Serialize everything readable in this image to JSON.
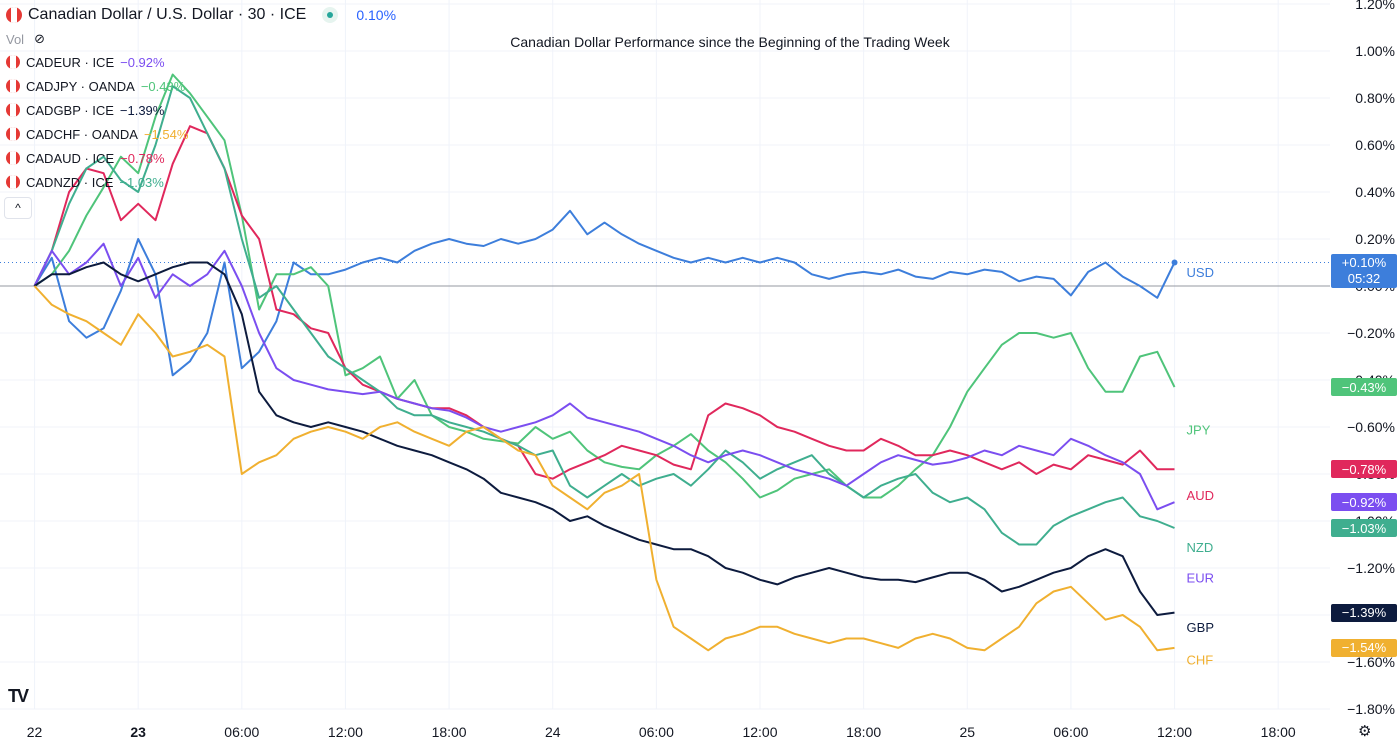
{
  "header": {
    "title": "Canadian Dollar / U.S. Dollar · 30 · ICE",
    "change": "0.10%",
    "change_color": "#2962ff"
  },
  "vol_label": "Vol",
  "symbols": [
    {
      "name": "CADEUR · ICE",
      "change": "−0.92%",
      "color": "#7b4ef0"
    },
    {
      "name": "CADJPY · OANDA",
      "change": "−0.43%",
      "color": "#4fc47a"
    },
    {
      "name": "CADGBP · ICE",
      "change": "−1.39%",
      "color": "#0d1b3e"
    },
    {
      "name": "CADCHF · OANDA",
      "change": "−1.54%",
      "color": "#f0b030"
    },
    {
      "name": "CADAUD · ICE",
      "change": "−0.78%",
      "color": "#e0285c"
    },
    {
      "name": "CADNZD · ICE",
      "change": "−1.03%",
      "color": "#3fae8f"
    }
  ],
  "collapse_label": "^",
  "logo_text": "TV",
  "settings_icon": "gear-icon",
  "price_badge_time": "05:32",
  "chart_data": {
    "type": "line",
    "title": "Canadian Dollar Performance since the Beginning of the Trading Week",
    "ylabel": "%",
    "ylim": [
      -1.8,
      1.2
    ],
    "x_tick_labels": [
      "22",
      "23",
      "06:00",
      "12:00",
      "18:00",
      "24",
      "06:00",
      "12:00",
      "18:00",
      "25",
      "06:00",
      "12:00",
      "18:00"
    ],
    "x_tick_values": [
      0,
      24,
      48,
      72,
      96,
      120,
      144,
      168,
      192,
      216,
      240,
      264,
      288
    ],
    "x_tick_bold": [
      false,
      true,
      false,
      false,
      false,
      false,
      false,
      false,
      false,
      false,
      false,
      false,
      false
    ],
    "y_ticks": [
      "1.20%",
      "1.00%",
      "0.80%",
      "0.60%",
      "0.40%",
      "0.20%",
      "0.00%",
      "−0.20%",
      "−0.40%",
      "−0.60%",
      "−0.80%",
      "−1.00%",
      "−1.20%",
      "−1.40%",
      "−1.60%",
      "−1.80%"
    ],
    "y_tick_values": [
      1.2,
      1.0,
      0.8,
      0.6,
      0.4,
      0.2,
      0.0,
      -0.2,
      -0.4,
      -0.6,
      -0.8,
      -1.0,
      -1.2,
      -1.4,
      -1.6,
      -1.8
    ],
    "grid": true,
    "x_unit_note": "half-hours since start",
    "series": [
      {
        "name": "USD",
        "color": "#3d7edb",
        "last": "+0.10%",
        "label_value": 0.06,
        "x": [
          0,
          4,
          8,
          12,
          16,
          20,
          24,
          28,
          32,
          36,
          40,
          44,
          48,
          52,
          56,
          60,
          64,
          68,
          72,
          76,
          80,
          84,
          88,
          92,
          96,
          100,
          104,
          108,
          112,
          116,
          120,
          124,
          128,
          132,
          136,
          140,
          144,
          148,
          152,
          156,
          160,
          164,
          168,
          172,
          176,
          180,
          184,
          188,
          192,
          196,
          200,
          204,
          208,
          212,
          216,
          220,
          224,
          228,
          232,
          236,
          240,
          244,
          248,
          252,
          256,
          260,
          264
        ],
        "y": [
          0.0,
          0.12,
          -0.15,
          -0.22,
          -0.18,
          -0.02,
          0.2,
          0.05,
          -0.38,
          -0.32,
          -0.2,
          0.1,
          -0.35,
          -0.28,
          -0.15,
          0.1,
          0.05,
          0.05,
          0.07,
          0.1,
          0.12,
          0.1,
          0.15,
          0.18,
          0.2,
          0.18,
          0.17,
          0.2,
          0.18,
          0.2,
          0.24,
          0.32,
          0.22,
          0.27,
          0.22,
          0.18,
          0.15,
          0.12,
          0.1,
          0.12,
          0.1,
          0.12,
          0.1,
          0.12,
          0.1,
          0.05,
          0.03,
          0.05,
          0.06,
          0.05,
          0.07,
          0.04,
          0.03,
          0.06,
          0.05,
          0.07,
          0.06,
          0.02,
          0.04,
          0.03,
          -0.04,
          0.06,
          0.1,
          0.04,
          0.0,
          -0.05,
          0.1
        ]
      },
      {
        "name": "JPY",
        "color": "#4fc47a",
        "last": "−0.43%",
        "label_value": -0.61,
        "x": [
          0,
          4,
          8,
          12,
          16,
          20,
          24,
          28,
          32,
          36,
          40,
          44,
          48,
          52,
          56,
          60,
          64,
          68,
          72,
          76,
          80,
          84,
          88,
          92,
          96,
          100,
          104,
          108,
          112,
          116,
          120,
          124,
          128,
          132,
          136,
          140,
          144,
          148,
          152,
          156,
          160,
          164,
          168,
          172,
          176,
          180,
          184,
          188,
          192,
          196,
          200,
          204,
          208,
          212,
          216,
          220,
          224,
          228,
          232,
          236,
          240,
          244,
          248,
          252,
          256,
          260,
          264
        ],
        "y": [
          0.0,
          0.05,
          0.15,
          0.3,
          0.42,
          0.55,
          0.48,
          0.72,
          0.9,
          0.82,
          0.72,
          0.62,
          0.3,
          -0.1,
          0.05,
          0.05,
          0.08,
          0.0,
          -0.38,
          -0.35,
          -0.3,
          -0.48,
          -0.4,
          -0.55,
          -0.6,
          -0.62,
          -0.65,
          -0.66,
          -0.67,
          -0.6,
          -0.65,
          -0.62,
          -0.7,
          -0.75,
          -0.77,
          -0.78,
          -0.72,
          -0.68,
          -0.63,
          -0.7,
          -0.75,
          -0.82,
          -0.9,
          -0.87,
          -0.82,
          -0.8,
          -0.78,
          -0.85,
          -0.9,
          -0.9,
          -0.85,
          -0.78,
          -0.72,
          -0.6,
          -0.45,
          -0.35,
          -0.25,
          -0.2,
          -0.2,
          -0.22,
          -0.2,
          -0.35,
          -0.45,
          -0.45,
          -0.3,
          -0.28,
          -0.43
        ]
      },
      {
        "name": "AUD",
        "color": "#e0285c",
        "last": "−0.78%",
        "label_value": -0.89,
        "x": [
          0,
          4,
          8,
          12,
          16,
          20,
          24,
          28,
          32,
          36,
          40,
          44,
          48,
          52,
          56,
          60,
          64,
          68,
          72,
          76,
          80,
          84,
          88,
          92,
          96,
          100,
          104,
          108,
          112,
          116,
          120,
          124,
          128,
          132,
          136,
          140,
          144,
          148,
          152,
          156,
          160,
          164,
          168,
          172,
          176,
          180,
          184,
          188,
          192,
          196,
          200,
          204,
          208,
          212,
          216,
          220,
          224,
          228,
          232,
          236,
          240,
          244,
          248,
          252,
          256,
          260,
          264
        ],
        "y": [
          0.0,
          0.15,
          0.4,
          0.5,
          0.48,
          0.28,
          0.35,
          0.28,
          0.52,
          0.68,
          0.65,
          0.5,
          0.3,
          0.2,
          -0.1,
          -0.12,
          -0.18,
          -0.2,
          -0.35,
          -0.42,
          -0.45,
          -0.48,
          -0.5,
          -0.52,
          -0.52,
          -0.55,
          -0.6,
          -0.65,
          -0.68,
          -0.8,
          -0.82,
          -0.78,
          -0.75,
          -0.72,
          -0.68,
          -0.7,
          -0.72,
          -0.76,
          -0.78,
          -0.55,
          -0.5,
          -0.52,
          -0.55,
          -0.6,
          -0.62,
          -0.65,
          -0.68,
          -0.7,
          -0.7,
          -0.65,
          -0.68,
          -0.72,
          -0.72,
          -0.7,
          -0.72,
          -0.75,
          -0.78,
          -0.75,
          -0.8,
          -0.76,
          -0.78,
          -0.72,
          -0.74,
          -0.76,
          -0.7,
          -0.78,
          -0.78
        ]
      },
      {
        "name": "NZD",
        "color": "#3fae8f",
        "last": "−1.03%",
        "label_value": -1.11,
        "x": [
          0,
          4,
          8,
          12,
          16,
          20,
          24,
          28,
          32,
          36,
          40,
          44,
          48,
          52,
          56,
          60,
          64,
          68,
          72,
          76,
          80,
          84,
          88,
          92,
          96,
          100,
          104,
          108,
          112,
          116,
          120,
          124,
          128,
          132,
          136,
          140,
          144,
          148,
          152,
          156,
          160,
          164,
          168,
          172,
          176,
          180,
          184,
          188,
          192,
          196,
          200,
          204,
          208,
          212,
          216,
          220,
          224,
          228,
          232,
          236,
          240,
          244,
          248,
          252,
          256,
          260,
          264
        ],
        "y": [
          0.0,
          0.15,
          0.35,
          0.5,
          0.55,
          0.45,
          0.4,
          0.6,
          0.85,
          0.8,
          0.65,
          0.5,
          0.2,
          -0.05,
          0.0,
          -0.1,
          -0.2,
          -0.3,
          -0.35,
          -0.4,
          -0.45,
          -0.52,
          -0.55,
          -0.55,
          -0.58,
          -0.6,
          -0.62,
          -0.65,
          -0.68,
          -0.72,
          -0.7,
          -0.85,
          -0.9,
          -0.85,
          -0.8,
          -0.85,
          -0.82,
          -0.8,
          -0.85,
          -0.78,
          -0.7,
          -0.75,
          -0.82,
          -0.78,
          -0.75,
          -0.72,
          -0.8,
          -0.85,
          -0.9,
          -0.85,
          -0.82,
          -0.8,
          -0.88,
          -0.92,
          -0.9,
          -0.95,
          -1.05,
          -1.1,
          -1.1,
          -1.02,
          -0.98,
          -0.95,
          -0.92,
          -0.9,
          -0.98,
          -1.0,
          -1.03
        ]
      },
      {
        "name": "EUR",
        "color": "#7b4ef0",
        "last": "−0.92%",
        "label_value": -1.24,
        "x": [
          0,
          4,
          8,
          12,
          16,
          20,
          24,
          28,
          32,
          36,
          40,
          44,
          48,
          52,
          56,
          60,
          64,
          68,
          72,
          76,
          80,
          84,
          88,
          92,
          96,
          100,
          104,
          108,
          112,
          116,
          120,
          124,
          128,
          132,
          136,
          140,
          144,
          148,
          152,
          156,
          160,
          164,
          168,
          172,
          176,
          180,
          184,
          188,
          192,
          196,
          200,
          204,
          208,
          212,
          216,
          220,
          224,
          228,
          232,
          236,
          240,
          244,
          248,
          252,
          256,
          260,
          264
        ],
        "y": [
          0.0,
          0.15,
          0.05,
          0.1,
          0.18,
          0.0,
          0.12,
          -0.05,
          0.05,
          0.0,
          0.05,
          0.15,
          0.0,
          -0.2,
          -0.35,
          -0.4,
          -0.42,
          -0.44,
          -0.45,
          -0.46,
          -0.45,
          -0.48,
          -0.5,
          -0.52,
          -0.53,
          -0.56,
          -0.6,
          -0.62,
          -0.6,
          -0.58,
          -0.55,
          -0.5,
          -0.56,
          -0.58,
          -0.6,
          -0.62,
          -0.65,
          -0.68,
          -0.72,
          -0.75,
          -0.72,
          -0.7,
          -0.72,
          -0.75,
          -0.78,
          -0.8,
          -0.82,
          -0.85,
          -0.8,
          -0.75,
          -0.72,
          -0.74,
          -0.76,
          -0.75,
          -0.73,
          -0.7,
          -0.72,
          -0.68,
          -0.7,
          -0.72,
          -0.65,
          -0.68,
          -0.72,
          -0.75,
          -0.8,
          -0.95,
          -0.92
        ]
      },
      {
        "name": "GBP",
        "color": "#0d1b3e",
        "last": "−1.39%",
        "label_value": -1.45,
        "x": [
          0,
          4,
          8,
          12,
          16,
          20,
          24,
          28,
          32,
          36,
          40,
          44,
          48,
          52,
          56,
          60,
          64,
          68,
          72,
          76,
          80,
          84,
          88,
          92,
          96,
          100,
          104,
          108,
          112,
          116,
          120,
          124,
          128,
          132,
          136,
          140,
          144,
          148,
          152,
          156,
          160,
          164,
          168,
          172,
          176,
          180,
          184,
          188,
          192,
          196,
          200,
          204,
          208,
          212,
          216,
          220,
          224,
          228,
          232,
          236,
          240,
          244,
          248,
          252,
          256,
          260,
          264
        ],
        "y": [
          0.0,
          0.05,
          0.05,
          0.08,
          0.1,
          0.05,
          0.02,
          0.05,
          0.08,
          0.1,
          0.1,
          0.05,
          -0.12,
          -0.45,
          -0.55,
          -0.58,
          -0.6,
          -0.58,
          -0.6,
          -0.62,
          -0.65,
          -0.68,
          -0.7,
          -0.72,
          -0.75,
          -0.78,
          -0.82,
          -0.88,
          -0.9,
          -0.92,
          -0.95,
          -1.0,
          -0.98,
          -1.02,
          -1.05,
          -1.08,
          -1.1,
          -1.12,
          -1.12,
          -1.15,
          -1.2,
          -1.22,
          -1.25,
          -1.27,
          -1.24,
          -1.22,
          -1.2,
          -1.22,
          -1.24,
          -1.25,
          -1.25,
          -1.26,
          -1.24,
          -1.22,
          -1.22,
          -1.25,
          -1.3,
          -1.28,
          -1.25,
          -1.22,
          -1.2,
          -1.15,
          -1.12,
          -1.15,
          -1.3,
          -1.4,
          -1.39
        ]
      },
      {
        "name": "CHF",
        "color": "#f0b030",
        "last": "−1.54%",
        "label_value": -1.59,
        "x": [
          0,
          4,
          8,
          12,
          16,
          20,
          24,
          28,
          32,
          36,
          40,
          44,
          48,
          52,
          56,
          60,
          64,
          68,
          72,
          76,
          80,
          84,
          88,
          92,
          96,
          100,
          104,
          108,
          112,
          116,
          120,
          124,
          128,
          132,
          136,
          140,
          144,
          148,
          152,
          156,
          160,
          164,
          168,
          172,
          176,
          180,
          184,
          188,
          192,
          196,
          200,
          204,
          208,
          212,
          216,
          220,
          224,
          228,
          232,
          236,
          240,
          244,
          248,
          252,
          256,
          260,
          264
        ],
        "y": [
          0.0,
          -0.08,
          -0.12,
          -0.15,
          -0.2,
          -0.25,
          -0.12,
          -0.2,
          -0.3,
          -0.28,
          -0.25,
          -0.3,
          -0.8,
          -0.75,
          -0.72,
          -0.65,
          -0.62,
          -0.6,
          -0.62,
          -0.65,
          -0.6,
          -0.58,
          -0.62,
          -0.65,
          -0.68,
          -0.62,
          -0.6,
          -0.65,
          -0.7,
          -0.72,
          -0.85,
          -0.9,
          -0.95,
          -0.88,
          -0.85,
          -0.8,
          -1.25,
          -1.45,
          -1.5,
          -1.55,
          -1.5,
          -1.48,
          -1.45,
          -1.45,
          -1.48,
          -1.5,
          -1.52,
          -1.5,
          -1.5,
          -1.52,
          -1.54,
          -1.5,
          -1.48,
          -1.5,
          -1.54,
          -1.55,
          -1.5,
          -1.45,
          -1.35,
          -1.3,
          -1.28,
          -1.35,
          -1.42,
          -1.4,
          -1.45,
          -1.55,
          -1.54
        ]
      }
    ]
  }
}
